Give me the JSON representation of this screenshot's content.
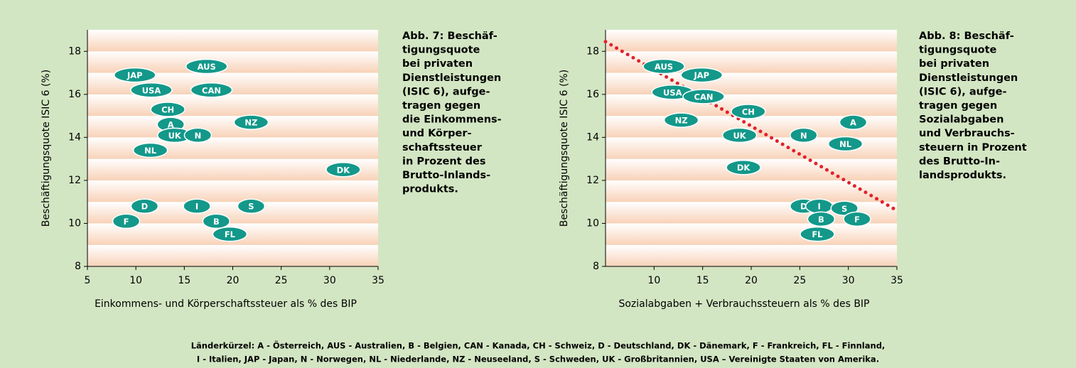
{
  "chart_data": [
    {
      "type": "scatter",
      "ylabel": "Beschäftigungsquote ISIC 6 (%)",
      "xlabel": "Einkommens- und Körperschaftssteuer als % des BIP",
      "caption": [
        "Abb. 7: Beschäf-",
        "tigungsquote",
        "bei privaten",
        "Dienstleistungen",
        "(ISIC 6), aufge-",
        "tragen gegen",
        "die Einkommens-",
        "und Körper-",
        "schaftssteuer",
        "in Prozent des",
        "Brutto-Inlands-",
        "produkts."
      ],
      "xlim": [
        5,
        35
      ],
      "ylim": [
        8,
        19
      ],
      "xticks": [
        5,
        10,
        15,
        20,
        25,
        30,
        35
      ],
      "yticks": [
        8,
        10,
        12,
        14,
        16,
        18
      ],
      "color": "#13988a",
      "labels": [
        "JAP",
        "AUS",
        "USA",
        "CAN",
        "CH",
        "A",
        "UK",
        "N",
        "NZ",
        "NL",
        "DK",
        "D",
        "I",
        "S",
        "F",
        "B",
        "FL"
      ],
      "x": [
        9.9,
        17.3,
        11.6,
        17.8,
        13.3,
        13.6,
        14.0,
        16.4,
        21.9,
        11.5,
        31.4,
        10.9,
        16.3,
        21.9,
        9.0,
        18.3,
        19.7
      ],
      "y": [
        16.9,
        17.3,
        16.2,
        16.2,
        15.3,
        14.6,
        14.1,
        14.1,
        14.7,
        13.4,
        12.5,
        10.8,
        10.8,
        10.8,
        10.1,
        10.1,
        9.5
      ]
    },
    {
      "type": "scatter",
      "ylabel": "Beschäftigungsquote ISIC 6 (%)",
      "xlabel": "Sozialabgaben + Verbrauchssteuern als % des BIP",
      "caption": [
        "Abb. 8: Beschäf-",
        "tigungsquote",
        "bei privaten",
        "Dienstleistungen",
        "(ISIC 6), aufge-",
        "tragen gegen",
        "Sozialabgaben",
        "und Verbrauchs-",
        "steuern in Prozent",
        "des Brutto-In-",
        "landsprodukts."
      ],
      "xlim": [
        5,
        35
      ],
      "ylim": [
        8,
        19
      ],
      "xticks": [
        10,
        15,
        20,
        25,
        30,
        35
      ],
      "yticks": [
        8,
        10,
        12,
        14,
        16,
        18
      ],
      "color": "#13988a",
      "labels": [
        "AUS",
        "JAP",
        "USA",
        "CAN",
        "CH",
        "NZ",
        "UK",
        "N",
        "A",
        "NL",
        "DK",
        "D",
        "I",
        "S",
        "B",
        "F",
        "FL"
      ],
      "x": [
        11.0,
        14.9,
        11.9,
        15.1,
        19.7,
        12.8,
        18.8,
        25.4,
        30.5,
        29.7,
        19.2,
        25.4,
        27.0,
        29.6,
        27.2,
        30.9,
        26.8
      ],
      "y": [
        17.3,
        16.9,
        16.1,
        15.9,
        15.2,
        14.8,
        14.1,
        14.1,
        14.7,
        13.7,
        12.6,
        10.8,
        10.8,
        10.7,
        10.2,
        10.2,
        9.5
      ],
      "trend": {
        "color": "#e1212b",
        "x": [
          5,
          35
        ],
        "y": [
          18.45,
          10.6
        ]
      }
    }
  ],
  "footer": [
    "Länderkürzel: A - Österreich, AUS - Australien, B - Belgien, CAN - Kanada, CH - Schweiz, D - Deutschland, DK - Dänemark, F - Frankreich, FL - Finnland,",
    "I - Italien, JAP - Japan, N - Norwegen, NL - Niederlande, NZ - Neuseeland, S - Schweden, UK - Großbritannien, USA – Vereinigte Staaten von Amerika."
  ]
}
